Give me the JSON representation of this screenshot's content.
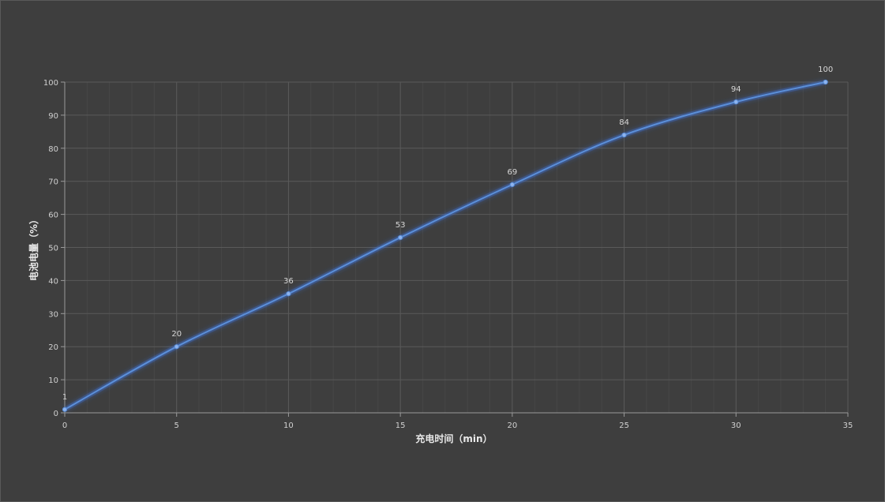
{
  "chart_data": {
    "type": "line",
    "title": "",
    "xlabel": "充电时间（min）",
    "ylabel": "电池电量（%）",
    "x": [
      0,
      5,
      10,
      15,
      20,
      25,
      30,
      34
    ],
    "series": [
      {
        "values": [
          1,
          20,
          36,
          53,
          69,
          84,
          94,
          100
        ]
      }
    ],
    "xlim": [
      0,
      35
    ],
    "ylim": [
      0,
      100
    ],
    "x_ticks": [
      "0",
      "5",
      "10",
      "15",
      "20",
      "25",
      "30",
      "35"
    ],
    "y_ticks": [
      "0",
      "10",
      "20",
      "30",
      "40",
      "50",
      "60",
      "70",
      "80",
      "90",
      "100"
    ],
    "data_labels": [
      "1",
      "20",
      "36",
      "53",
      "69",
      "84",
      "94",
      "100"
    ],
    "grid": true,
    "legend": "none",
    "colors": {
      "background": "#3e3e3e",
      "line": "#5b8fd9",
      "glow": "#3f6fd0",
      "grid_major": "#5a5a5a",
      "grid_minor": "#474747",
      "axis": "#9a9a9a",
      "text": "#d0d0d0"
    }
  }
}
